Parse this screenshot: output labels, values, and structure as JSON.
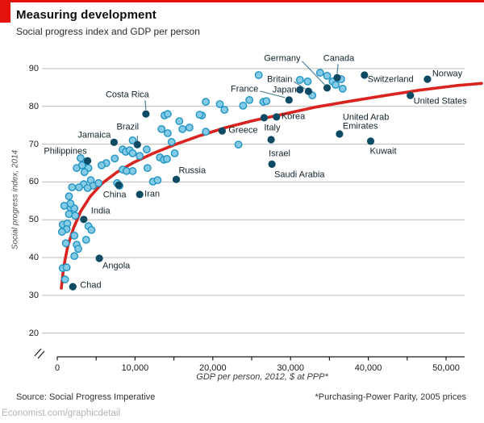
{
  "page": {
    "title": "Measuring development",
    "subtitle": "Social progress index and GDP per person",
    "source": "Source: Social Progress Imperative",
    "footnote": "*Purchasing-Power Parity, 2005 prices",
    "watermark": "Economist.com/graphicdetail"
  },
  "colors": {
    "accent_red": "#e3120b",
    "trend_red": "#d9241f",
    "dot_light_fill": "#85cbe5",
    "dot_light_stroke": "#1f94c4",
    "dot_dark": "#0d4a63",
    "grid": "#bababa",
    "axis": "#1a1a1a",
    "leader": "#44788f",
    "label_text": "#10222b",
    "watermark_gray": "#b3b3b3"
  },
  "chart_data": {
    "type": "scatter",
    "title": "Measuring development",
    "subtitle": "Social progress index and GDP per person",
    "xlabel": "GDP per person, 2012, $ at PPP*",
    "ylabel": "Social progress index, 2014",
    "xlim": [
      0,
      52500
    ],
    "ylim": [
      20,
      92
    ],
    "axis_break": true,
    "grid": "horizontal",
    "x_ticks": [
      {
        "value": 0,
        "label": "0"
      },
      {
        "value": 10000,
        "label": "10,000"
      },
      {
        "value": 20000,
        "label": "20,000"
      },
      {
        "value": 30000,
        "label": "30,000"
      },
      {
        "value": 40000,
        "label": "40,000"
      },
      {
        "value": 50000,
        "label": "50,000"
      }
    ],
    "x_minor_tick_step": 5000,
    "y_ticks": [
      90,
      80,
      70,
      60,
      50,
      40,
      30,
      20
    ],
    "series": [
      {
        "name": "highlighted-countries",
        "style": "dark",
        "points": [
          {
            "label": "Chad",
            "gdp": 2000,
            "spi": 32.3,
            "align": "left",
            "dx": 9,
            "dy": -1
          },
          {
            "label": "Angola",
            "gdp": 5400,
            "spi": 39.8,
            "align": "left",
            "dx": 4,
            "dy": 10
          },
          {
            "label": "India",
            "gdp": 3400,
            "spi": 50.1,
            "align": "left",
            "dx": 9,
            "dy": -10
          },
          {
            "label": "Philippines",
            "gdp": 3900,
            "spi": 65.6,
            "align": "right",
            "dx": -1,
            "dy": -11
          },
          {
            "label": "China",
            "gdp": 7900,
            "spi": 59.2,
            "align": "center",
            "dx": -5,
            "dy": 13
          },
          {
            "label": "Iran",
            "gdp": 10600,
            "spi": 56.7,
            "align": "left",
            "dx": 6,
            "dy": 0
          },
          {
            "label": "Jamaica",
            "gdp": 7300,
            "spi": 70.5,
            "align": "right",
            "dx": -4,
            "dy": -8
          },
          {
            "label": "Brazil",
            "gdp": 10300,
            "spi": 69.9,
            "align": "center",
            "dx": -12,
            "dy": -21,
            "leader": [
              0,
              -11,
              0,
              -4
            ]
          },
          {
            "label": "Russia",
            "gdp": 15300,
            "spi": 60.7,
            "align": "left",
            "dx": 3,
            "dy": -10
          },
          {
            "label": "Costa Rica",
            "gdp": 11400,
            "spi": 78.0,
            "align": "center",
            "dx": -23,
            "dy": -23,
            "leader": [
              -1,
              -17,
              0,
              -5
            ]
          },
          {
            "label": "Greece",
            "gdp": 21200,
            "spi": 73.5,
            "align": "left",
            "dx": 8,
            "dy": 0
          },
          {
            "label": "Italy",
            "gdp": 26600,
            "spi": 77.0,
            "align": "center",
            "dx": 10,
            "dy": 13
          },
          {
            "label": "Korea",
            "gdp": 28200,
            "spi": 77.2,
            "align": "left",
            "dx": 6,
            "dy": 0
          },
          {
            "label": "Israel",
            "gdp": 27500,
            "spi": 71.2,
            "align": "left",
            "dx": -3,
            "dy": 18
          },
          {
            "label": "Saudi Arabia",
            "gdp": 27600,
            "spi": 64.7,
            "align": "left",
            "dx": 3,
            "dy": 14
          },
          {
            "label": "United Arab\nEmirates",
            "gdp": 36300,
            "spi": 72.7,
            "align": "left",
            "dx": 4,
            "dy": -14
          },
          {
            "label": "Kuwait",
            "gdp": 40300,
            "spi": 70.8,
            "align": "left",
            "dx": -1,
            "dy": 13
          },
          {
            "label": "France",
            "gdp": 29800,
            "spi": 81.7,
            "align": "right",
            "dx": -38,
            "dy": -13,
            "leader": [
              -36,
              -11,
              -5,
              -3
            ]
          },
          {
            "label": "Japan",
            "gdp": 31200,
            "spi": 84.4,
            "align": "right",
            "dx": -4,
            "dy": 1
          },
          {
            "label": "Britain",
            "gdp": 32300,
            "spi": 84.0,
            "align": "right",
            "dx": -20,
            "dy": -14,
            "leader": [
              -18,
              -12,
              -4,
              -3
            ]
          },
          {
            "label": "Germany",
            "gdp": 34700,
            "spi": 84.9,
            "align": "right",
            "dx": -33,
            "dy": -36,
            "leader": [
              -31,
              -33,
              -3,
              -4
            ]
          },
          {
            "label": "Canada",
            "gdp": 36000,
            "spi": 87.6,
            "align": "center",
            "dx": 2,
            "dy": -23,
            "leader": [
              1,
              -17,
              0,
              -5
            ]
          },
          {
            "label": "Switzerland",
            "gdp": 39500,
            "spi": 88.3,
            "align": "left",
            "dx": 4,
            "dy": 6
          },
          {
            "label": "Norway",
            "gdp": 47600,
            "spi": 87.2,
            "align": "left",
            "dx": 6,
            "dy": -6
          },
          {
            "label": "United States",
            "gdp": 45400,
            "spi": 82.9,
            "align": "left",
            "dx": 4,
            "dy": 8
          }
        ]
      },
      {
        "name": "other-countries",
        "style": "light",
        "points": [
          [
            1700,
            53.2
          ],
          [
            2200,
            53.0
          ],
          [
            1500,
            51.5
          ],
          [
            2300,
            51.1
          ],
          [
            1900,
            58.6
          ],
          [
            1500,
            56.2
          ],
          [
            1700,
            54.3
          ],
          [
            900,
            53.7
          ],
          [
            700,
            48.7
          ],
          [
            1300,
            49.0
          ],
          [
            1200,
            47.5
          ],
          [
            600,
            46.8
          ],
          [
            4000,
            48.3
          ],
          [
            4400,
            47.3
          ],
          [
            2200,
            45.8
          ],
          [
            3700,
            44.7
          ],
          [
            1100,
            43.8
          ],
          [
            2500,
            43.4
          ],
          [
            2700,
            42.3
          ],
          [
            2200,
            40.4
          ],
          [
            700,
            37.2
          ],
          [
            1200,
            37.4
          ],
          [
            1000,
            34.2
          ],
          [
            3000,
            66.3
          ],
          [
            3700,
            65.4
          ],
          [
            2500,
            63.7
          ],
          [
            4000,
            63.7
          ],
          [
            3200,
            64.4
          ],
          [
            3500,
            62.6
          ],
          [
            4300,
            60.5
          ],
          [
            3400,
            59.4
          ],
          [
            2800,
            58.6
          ],
          [
            4600,
            59.0
          ],
          [
            5300,
            59.7
          ],
          [
            3900,
            58.4
          ],
          [
            9700,
            71.0
          ],
          [
            8400,
            68.6
          ],
          [
            8800,
            68.0
          ],
          [
            9300,
            68.4
          ],
          [
            9700,
            67.6
          ],
          [
            10600,
            66.9
          ],
          [
            11500,
            68.6
          ],
          [
            14700,
            70.6
          ],
          [
            15100,
            67.6
          ],
          [
            13200,
            66.5
          ],
          [
            13700,
            65.9
          ],
          [
            14100,
            66.1
          ],
          [
            6300,
            65.0
          ],
          [
            7400,
            66.2
          ],
          [
            5700,
            64.4
          ],
          [
            8400,
            63.3
          ],
          [
            8900,
            62.9
          ],
          [
            9700,
            62.9
          ],
          [
            11600,
            63.7
          ],
          [
            12300,
            60.1
          ],
          [
            12900,
            60.5
          ],
          [
            7700,
            59.7
          ],
          [
            8000,
            59.0
          ],
          [
            19100,
            81.2
          ],
          [
            20900,
            80.6
          ],
          [
            21500,
            79.1
          ],
          [
            18600,
            77.6
          ],
          [
            23900,
            80.2
          ],
          [
            24700,
            81.7
          ],
          [
            26500,
            81.2
          ],
          [
            26900,
            81.4
          ],
          [
            19100,
            73.3
          ],
          [
            23300,
            69.9
          ],
          [
            13800,
            77.6
          ],
          [
            14200,
            78.0
          ],
          [
            15700,
            76.1
          ],
          [
            18300,
            77.8
          ],
          [
            13400,
            74.0
          ],
          [
            14200,
            72.9
          ],
          [
            16100,
            74.0
          ],
          [
            17000,
            74.4
          ],
          [
            25900,
            88.3
          ],
          [
            31200,
            87.0
          ],
          [
            32200,
            86.6
          ],
          [
            33800,
            88.9
          ],
          [
            34700,
            88.1
          ],
          [
            35400,
            86.6
          ],
          [
            36500,
            87.2
          ],
          [
            35800,
            85.7
          ],
          [
            36700,
            84.7
          ],
          [
            32800,
            82.9
          ]
        ]
      },
      {
        "name": "trend-line",
        "style": "trend",
        "points": [
          [
            520,
            31.9
          ],
          [
            830,
            37.6
          ],
          [
            1350,
            43.0
          ],
          [
            2070,
            47.7
          ],
          [
            3010,
            52.2
          ],
          [
            4250,
            56.2
          ],
          [
            5810,
            59.7
          ],
          [
            7680,
            62.6
          ],
          [
            9850,
            65.2
          ],
          [
            12340,
            67.6
          ],
          [
            15140,
            69.9
          ],
          [
            18260,
            72.2
          ],
          [
            21680,
            74.4
          ],
          [
            25310,
            76.3
          ],
          [
            29150,
            78.0
          ],
          [
            33200,
            79.8
          ],
          [
            37450,
            81.3
          ],
          [
            41910,
            82.8
          ],
          [
            46580,
            84.3
          ],
          [
            51240,
            85.5
          ],
          [
            54560,
            86.1
          ]
        ]
      }
    ]
  }
}
